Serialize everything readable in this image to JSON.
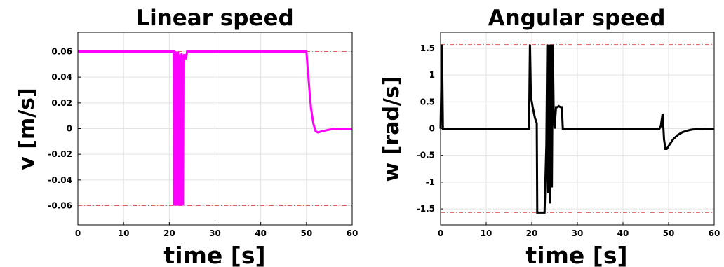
{
  "colors": {
    "linear": "#ff00ff",
    "angular": "#000000",
    "limit": "#e06060",
    "grid": "#e3e3e3",
    "axis": "#000000"
  },
  "chart_data": [
    {
      "type": "line",
      "title": "Linear speed",
      "xlabel": "time [s]",
      "ylabel": "v [m/s]",
      "xlim": [
        0,
        60
      ],
      "ylim": [
        -0.075,
        0.075
      ],
      "xticks": [
        "0",
        "10",
        "20",
        "30",
        "40",
        "50",
        "60"
      ],
      "yticks": [
        "-0.06",
        "-0.04",
        "-0.02",
        "0",
        "0.02",
        "0.04",
        "0.06"
      ],
      "grid": true,
      "limits": [
        0.06,
        -0.06
      ],
      "series": [
        {
          "color": "#ff00ff",
          "x": [
            0,
            21.0,
            21.05,
            21.1,
            21.2,
            21.3,
            21.4,
            21.5,
            21.6,
            21.7,
            21.8,
            21.9,
            22.0,
            22.1,
            22.2,
            22.3,
            22.4,
            22.5,
            22.6,
            22.7,
            22.8,
            22.9,
            23.0,
            23.1,
            23.3,
            23.6,
            23.9,
            24.2,
            50.0,
            50.3,
            50.7,
            51.0,
            51.5,
            52.0,
            52.5,
            53.0,
            54.0,
            55.0,
            56.0,
            57.0,
            58.0,
            59.0,
            60.0
          ],
          "y": [
            0.06,
            0.06,
            -0.06,
            0.06,
            -0.06,
            0.06,
            -0.06,
            0.06,
            -0.06,
            0.055,
            -0.06,
            0.06,
            -0.06,
            0.055,
            -0.06,
            0.058,
            -0.06,
            0.056,
            -0.06,
            0.059,
            -0.06,
            0.057,
            -0.06,
            0.055,
            0.058,
            0.054,
            0.06,
            0.06,
            0.06,
            0.045,
            0.028,
            0.016,
            0.004,
            -0.002,
            -0.003,
            -0.0025,
            -0.0015,
            -0.0008,
            -0.0003,
            -0.0001,
            0.0,
            0.0,
            0.0
          ]
        }
      ]
    },
    {
      "type": "line",
      "title": "Angular speed",
      "xlabel": "time [s]",
      "ylabel": "w [rad/s]",
      "xlim": [
        0,
        60
      ],
      "ylim": [
        -1.8,
        1.8
      ],
      "xticks": [
        "0",
        "10",
        "20",
        "30",
        "40",
        "50",
        "60"
      ],
      "yticks": [
        "-1.5",
        "-1",
        "-0.5",
        "0",
        "0.5",
        "1",
        "1.5"
      ],
      "grid": true,
      "limits": [
        1.57,
        -1.57
      ],
      "series": [
        {
          "color": "#000000",
          "x": [
            0,
            0.3,
            0.5,
            0.8,
            19.4,
            19.6,
            19.8,
            20.2,
            20.7,
            21.1,
            21.2,
            21.8,
            22.8,
            23.2,
            23.4,
            23.6,
            23.8,
            24.0,
            24.2,
            24.4,
            24.6,
            24.8,
            25.0,
            25.3,
            25.6,
            25.9,
            26.3,
            26.6,
            26.8,
            27.0,
            48.0,
            48.3,
            48.7,
            49.0,
            49.3,
            49.6,
            50.2,
            51.0,
            52.0,
            53.0,
            54.0,
            55.0,
            56.0,
            57.0,
            58.0,
            60.0
          ],
          "y": [
            0.0,
            1.57,
            0.0,
            0.0,
            0.0,
            1.57,
            0.6,
            0.4,
            0.2,
            0.1,
            -1.57,
            -1.57,
            -1.57,
            -0.3,
            1.57,
            -1.2,
            1.57,
            -1.4,
            1.57,
            -1.1,
            1.57,
            0.3,
            0.0,
            0.4,
            0.4,
            0.42,
            0.4,
            0.4,
            0.0,
            0.0,
            0.0,
            0.05,
            0.28,
            -0.2,
            -0.38,
            -0.38,
            -0.3,
            -0.2,
            -0.12,
            -0.07,
            -0.04,
            -0.02,
            -0.01,
            -0.005,
            0.0,
            0.0
          ]
        }
      ]
    }
  ]
}
